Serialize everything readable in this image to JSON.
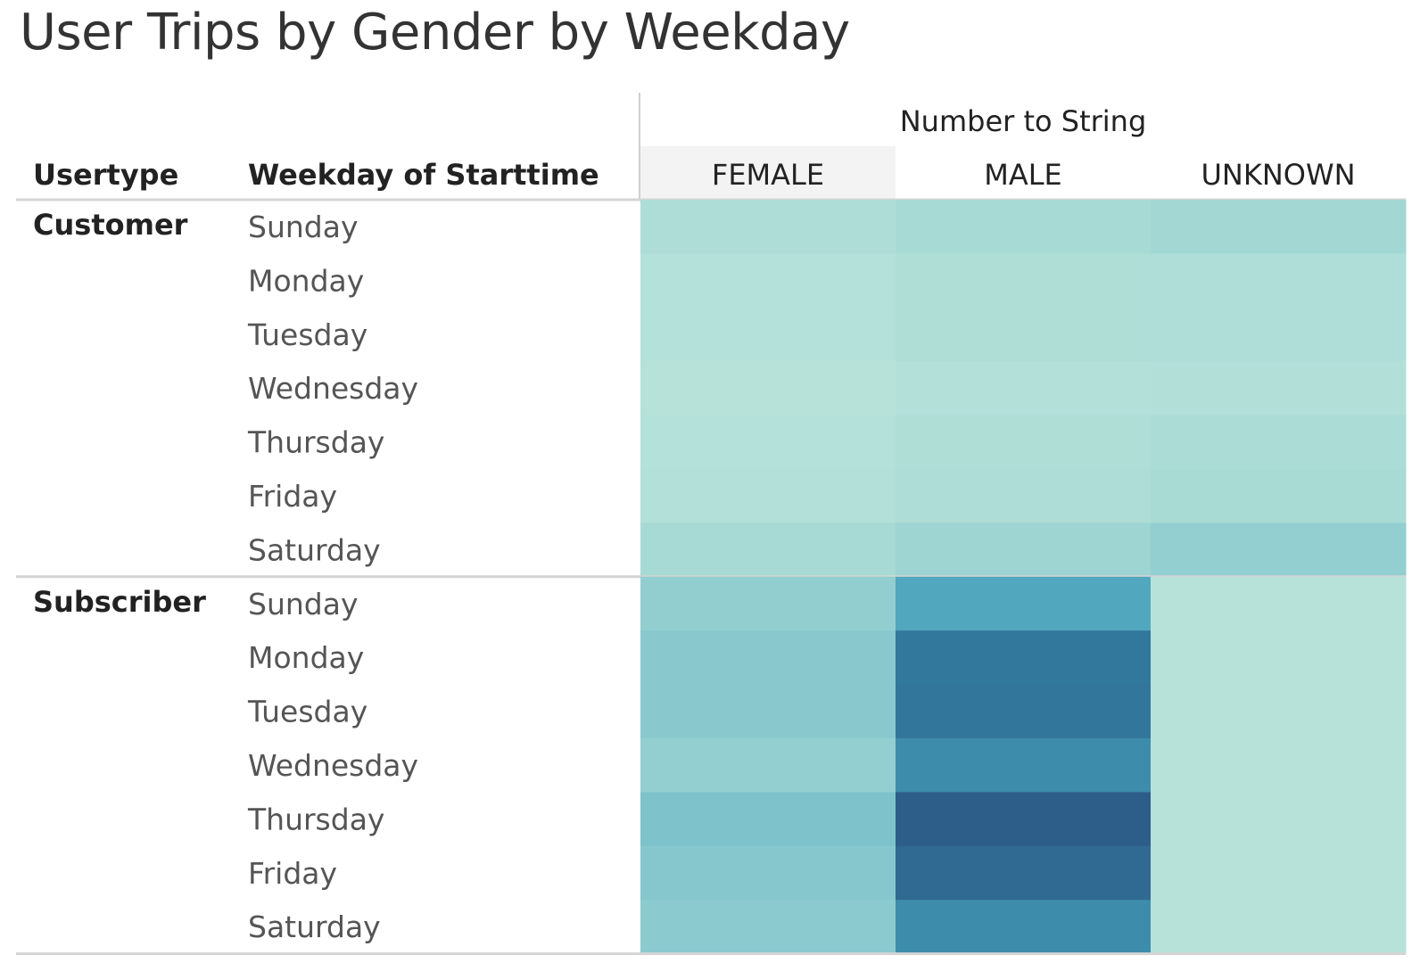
{
  "title": "User Trips by Gender by Weekday",
  "chart_data": {
    "type": "heatmap",
    "title": "User Trips by Gender by Weekday",
    "row_headers": [
      "Usertype",
      "Weekday of Starttime"
    ],
    "column_group_header": "Number to String",
    "columns": [
      "FEMALE",
      "MALE",
      "UNKNOWN"
    ],
    "groups": [
      {
        "name": "Customer",
        "rows": [
          {
            "day": "Sunday",
            "values": [
              0.14,
              0.18,
              0.22
            ]
          },
          {
            "day": "Monday",
            "values": [
              0.08,
              0.12,
              0.13
            ]
          },
          {
            "day": "Tuesday",
            "values": [
              0.08,
              0.12,
              0.13
            ]
          },
          {
            "day": "Wednesday",
            "values": [
              0.06,
              0.09,
              0.1
            ]
          },
          {
            "day": "Thursday",
            "values": [
              0.08,
              0.12,
              0.15
            ]
          },
          {
            "day": "Friday",
            "values": [
              0.09,
              0.14,
              0.17
            ]
          },
          {
            "day": "Saturday",
            "values": [
              0.18,
              0.25,
              0.31
            ]
          }
        ]
      },
      {
        "name": "Subscriber",
        "rows": [
          {
            "day": "Sunday",
            "values": [
              0.32,
              0.58,
              0.06
            ]
          },
          {
            "day": "Monday",
            "values": [
              0.37,
              0.82,
              0.06
            ]
          },
          {
            "day": "Tuesday",
            "values": [
              0.37,
              0.83,
              0.06
            ]
          },
          {
            "day": "Wednesday",
            "values": [
              0.31,
              0.72,
              0.06
            ]
          },
          {
            "day": "Thursday",
            "values": [
              0.42,
              0.96,
              0.06
            ]
          },
          {
            "day": "Friday",
            "values": [
              0.39,
              0.9,
              0.06
            ]
          },
          {
            "day": "Saturday",
            "values": [
              0.36,
              0.72,
              0.06
            ]
          }
        ]
      }
    ],
    "color_scale": [
      "#bde6dc",
      "#a6d9d4",
      "#84c6cd",
      "#4ba3bc",
      "#337c9f",
      "#2c5583"
    ],
    "legend": "none",
    "grid": false
  }
}
